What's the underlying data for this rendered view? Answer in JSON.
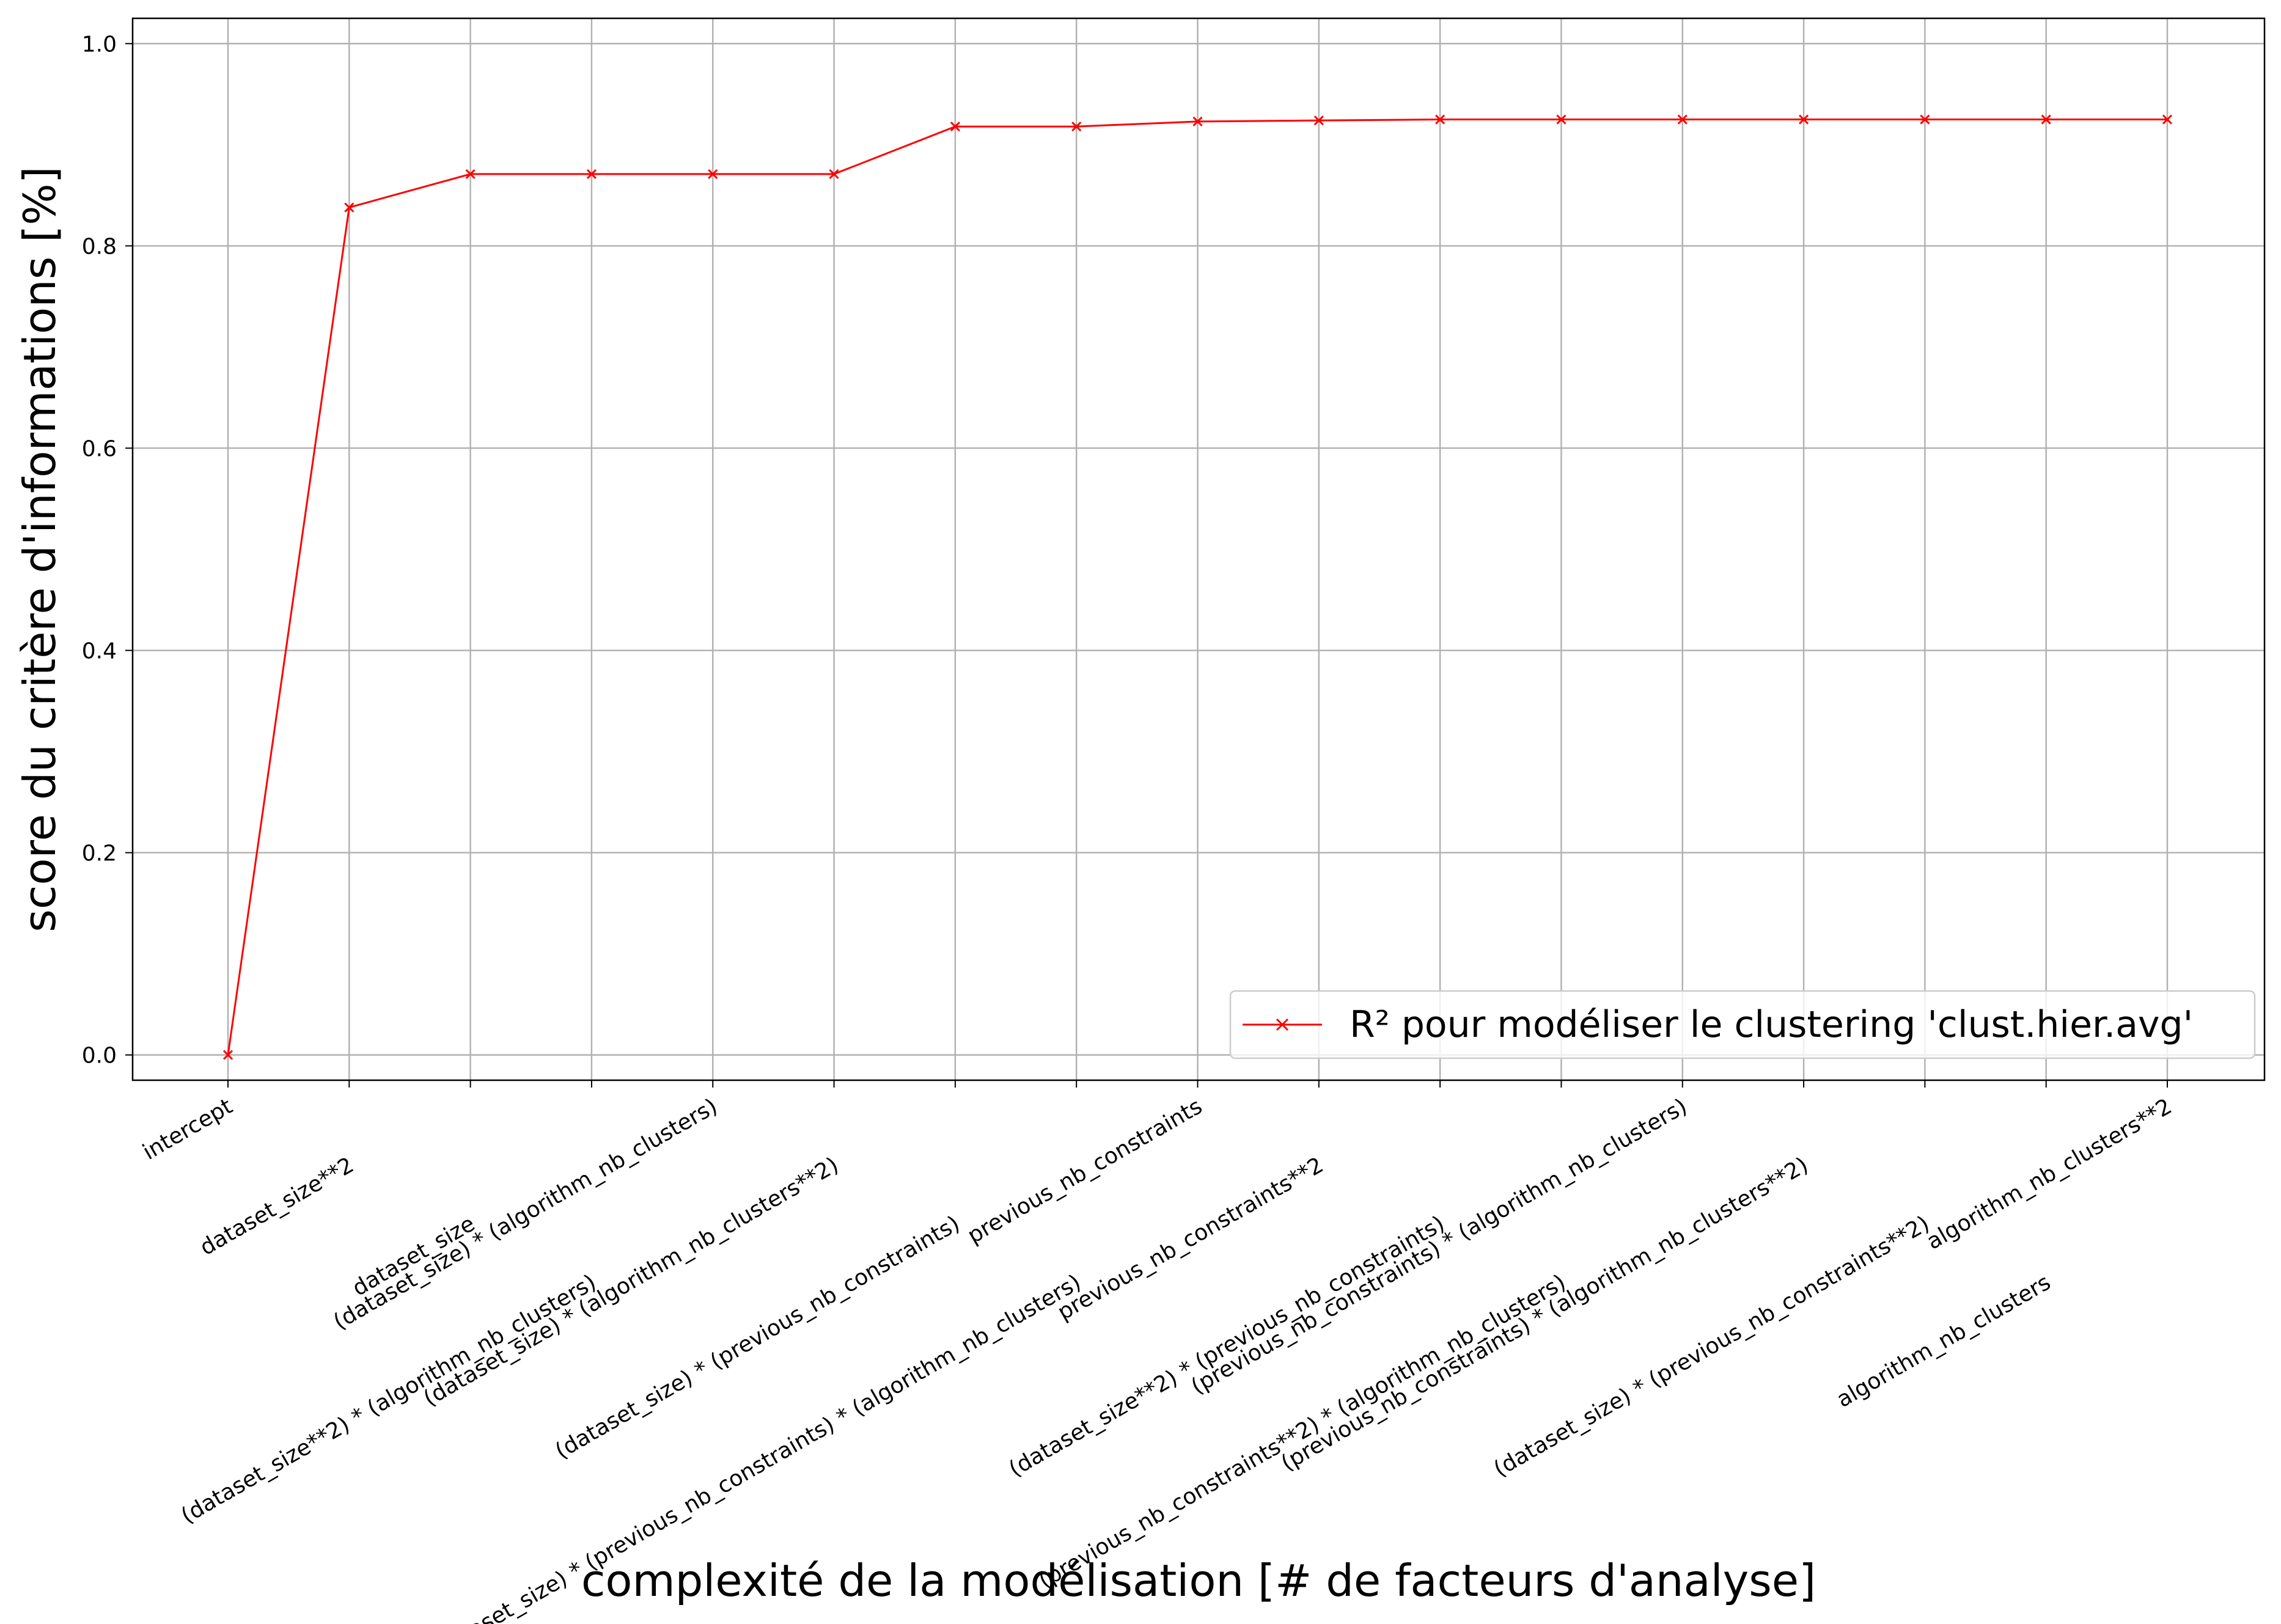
{
  "chart_data": {
    "type": "line",
    "title": "",
    "xlabel": "complexité de la modélisation [# de facteurs d'analyse]",
    "ylabel": "score du critère d'informations [%]",
    "ylim": [
      -0.025,
      1.025
    ],
    "yticks": [
      "0.0",
      "0.2",
      "0.4",
      "0.6",
      "0.8",
      "1.0"
    ],
    "grid": true,
    "legend_position": "lower right",
    "categories": [
      "intercept",
      "dataset_size**2",
      "dataset_size",
      "(dataset_size**2) * (algorithm_nb_clusters)",
      "(dataset_size) * (algorithm_nb_clusters)",
      "(dataset_size) * (algorithm_nb_clusters**2)",
      "(dataset_size) * (previous_nb_constraints)",
      "(dataset_size) * (previous_nb_constraints) * (algorithm_nb_clusters)",
      "previous_nb_constraints",
      "previous_nb_constraints**2",
      "(dataset_size**2) * (previous_nb_constraints)",
      "(previous_nb_constraints**2) * (algorithm_nb_clusters)",
      "(previous_nb_constraints) * (algorithm_nb_clusters)",
      "(previous_nb_constraints) * (algorithm_nb_clusters**2)",
      "(dataset_size) * (previous_nb_constraints**2)",
      "algorithm_nb_clusters",
      "algorithm_nb_clusters**2"
    ],
    "series": [
      {
        "name": "R² pour modéliser le clustering 'clust.hier.avg'",
        "color": "#ff0000",
        "marker": "x",
        "values": [
          0.0,
          0.838,
          0.871,
          0.871,
          0.871,
          0.871,
          0.918,
          0.918,
          0.923,
          0.924,
          0.925,
          0.925,
          0.925,
          0.925,
          0.925,
          0.925,
          0.925
        ]
      }
    ]
  }
}
